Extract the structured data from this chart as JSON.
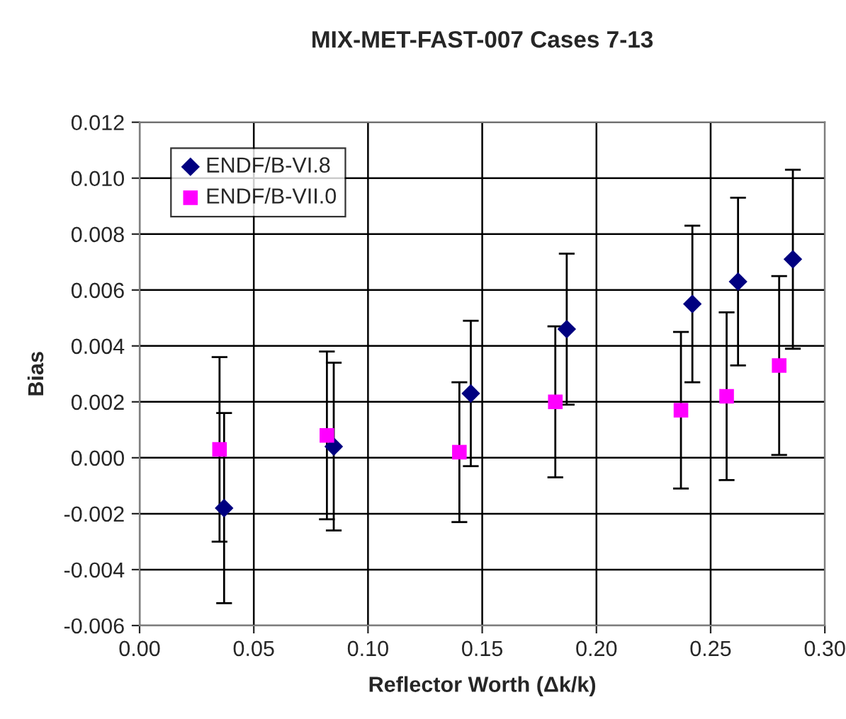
{
  "chart_data": {
    "type": "scatter",
    "title": "MIX-MET-FAST-007 Cases 7-13",
    "xlabel": "Reflector Worth (Δk/k)",
    "ylabel": "Bias",
    "xlim": [
      0.0,
      0.3
    ],
    "xticks": [
      {
        "value": 0,
        "label": "0.00"
      },
      {
        "value": 0.05,
        "label": "0.05"
      },
      {
        "value": 0.1,
        "label": "0.10"
      },
      {
        "value": 0.15,
        "label": "0.15"
      },
      {
        "value": 0.2,
        "label": "0.20"
      },
      {
        "value": 0.25,
        "label": "0.25"
      },
      {
        "value": 0.3,
        "label": "0.30"
      }
    ],
    "ylim": [
      -0.006,
      0.012
    ],
    "yticks": [
      {
        "value": -0.006,
        "label": "-0.006"
      },
      {
        "value": -0.004,
        "label": "-0.004"
      },
      {
        "value": -0.002,
        "label": "-0.002"
      },
      {
        "value": 0,
        "label": "0.000"
      },
      {
        "value": 0.002,
        "label": "0.002"
      },
      {
        "value": 0.004,
        "label": "0.004"
      },
      {
        "value": 0.006,
        "label": "0.006"
      },
      {
        "value": 0.008,
        "label": "0.008"
      },
      {
        "value": 0.01,
        "label": "0.010"
      },
      {
        "value": 0.012,
        "label": "0.012"
      }
    ],
    "grid": true,
    "legend": "top left",
    "series": [
      {
        "name": "ENDF/B-VI.8",
        "color": "#000080",
        "marker": "diamond",
        "x": [
          0.037,
          0.085,
          0.145,
          0.187,
          0.242,
          0.262,
          0.286
        ],
        "values": [
          -0.0018,
          0.0004,
          0.0023,
          0.0046,
          0.0055,
          0.0063,
          0.0071
        ],
        "errors": [
          0.0034,
          0.003,
          0.0026,
          0.0027,
          0.0028,
          0.003,
          0.0032
        ]
      },
      {
        "name": "ENDF/B-VII.0",
        "color": "#ff00ff",
        "marker": "square",
        "x": [
          0.035,
          0.082,
          0.14,
          0.182,
          0.237,
          0.257,
          0.28
        ],
        "values": [
          0.0003,
          0.0008,
          0.0002,
          0.002,
          0.0017,
          0.0022,
          0.0033
        ],
        "errors": [
          0.0033,
          0.003,
          0.0025,
          0.0027,
          0.0028,
          0.003,
          0.0032
        ]
      }
    ]
  }
}
